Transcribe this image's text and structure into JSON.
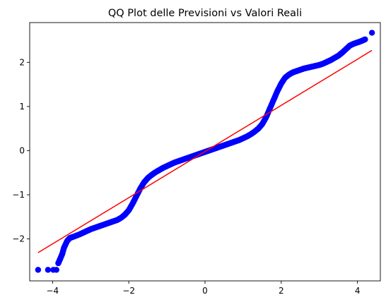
{
  "chart_data": {
    "type": "scatter",
    "title": "QQ Plot delle Previsioni vs Valori Reali",
    "xlabel": "",
    "ylabel": "",
    "xlim": [
      -4.6,
      4.6
    ],
    "ylim": [
      -2.95,
      2.9
    ],
    "x_ticks": [
      -4,
      -2,
      0,
      2,
      4
    ],
    "y_ticks": [
      -2,
      -1,
      0,
      1,
      2
    ],
    "x_tick_labels": [
      "−4",
      "−2",
      "0",
      "2",
      "4"
    ],
    "y_tick_labels": [
      "−2",
      "−1",
      "0",
      "1",
      "2"
    ],
    "grid": false,
    "legend": "none",
    "series": [
      {
        "kind": "points",
        "color": "#0000ff",
        "x": [
          -4.38,
          -4.12,
          -3.98,
          -3.9,
          -3.85,
          -3.8,
          -3.75,
          -3.7,
          -3.62,
          -3.55,
          -3.45,
          -3.3,
          -3.2,
          -3.1,
          -3.0,
          -2.9,
          -2.8,
          -2.7,
          -2.6,
          -2.5,
          -2.4,
          -2.3,
          -2.2,
          -2.1,
          -2.0,
          -1.9,
          -1.8,
          -1.7,
          -1.6,
          -1.5,
          -1.4,
          -1.3,
          -1.2,
          -1.1,
          -1.0,
          -0.9,
          -0.8,
          -0.7,
          -0.6,
          -0.5,
          -0.4,
          -0.3,
          -0.2,
          -0.1,
          0.0,
          0.1,
          0.2,
          0.3,
          0.4,
          0.5,
          0.6,
          0.7,
          0.8,
          0.9,
          1.0,
          1.1,
          1.2,
          1.3,
          1.4,
          1.5,
          1.6,
          1.7,
          1.8,
          1.9,
          2.0,
          2.1,
          2.2,
          2.3,
          2.4,
          2.5,
          2.6,
          2.7,
          2.8,
          2.9,
          3.0,
          3.1,
          3.2,
          3.3,
          3.4,
          3.5,
          3.6,
          3.7,
          3.8,
          3.9,
          4.0,
          4.1,
          4.2,
          4.38
        ],
        "y": [
          -2.7,
          -2.7,
          -2.7,
          -2.7,
          -2.55,
          -2.45,
          -2.35,
          -2.2,
          -2.05,
          -1.98,
          -1.95,
          -1.9,
          -1.86,
          -1.82,
          -1.78,
          -1.75,
          -1.72,
          -1.69,
          -1.66,
          -1.63,
          -1.6,
          -1.57,
          -1.52,
          -1.45,
          -1.35,
          -1.2,
          -1.03,
          -0.86,
          -0.72,
          -0.62,
          -0.55,
          -0.49,
          -0.44,
          -0.39,
          -0.35,
          -0.31,
          -0.27,
          -0.24,
          -0.21,
          -0.18,
          -0.15,
          -0.12,
          -0.09,
          -0.06,
          -0.03,
          0.0,
          0.03,
          0.06,
          0.09,
          0.12,
          0.15,
          0.18,
          0.21,
          0.24,
          0.28,
          0.32,
          0.37,
          0.43,
          0.5,
          0.6,
          0.75,
          0.95,
          1.15,
          1.35,
          1.52,
          1.65,
          1.72,
          1.77,
          1.8,
          1.83,
          1.86,
          1.88,
          1.9,
          1.92,
          1.94,
          1.97,
          2.01,
          2.05,
          2.1,
          2.15,
          2.22,
          2.3,
          2.38,
          2.42,
          2.45,
          2.48,
          2.52,
          2.67
        ]
      },
      {
        "kind": "line",
        "color": "#ff0000",
        "x": [
          -4.38,
          4.38
        ],
        "y": [
          -2.31,
          2.27
        ]
      }
    ]
  }
}
